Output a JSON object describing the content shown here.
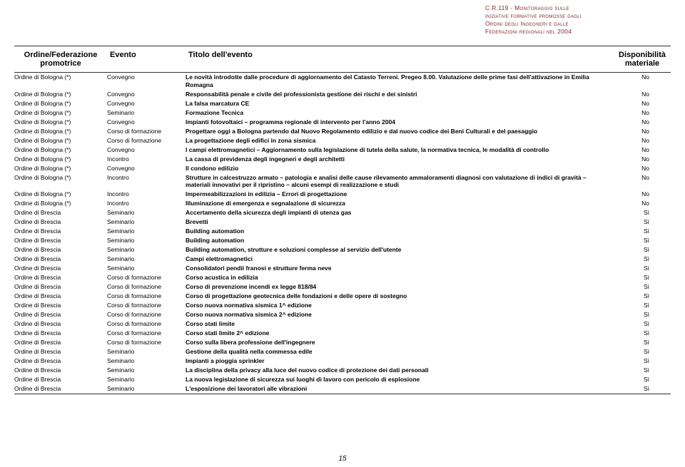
{
  "header": {
    "line1": "C.R.119 - Monitoraggio sulle",
    "line2": "iniziative formative promosse dagli",
    "line3": "Ordini degli Ingegneri e dalle",
    "line4": "Federazioni regionali nel 2004"
  },
  "columns": {
    "promoter": "Ordine/Federazione promotrice",
    "event": "Evento",
    "title": "Titolo dell'evento",
    "avail": "Disponibilità materiale"
  },
  "rows": [
    {
      "a": "Ordine di Bologna (*)",
      "b": "Convegno",
      "c": "Le novità introdotte dalle procedure di aggiornamento del Catasto Terreni. Pregeo 8.00. Valutazione delle prime fasi dell'attivazione in Emilia Romagna",
      "d": "No"
    },
    {
      "a": "Ordine di Bologna (*)",
      "b": "Convegno",
      "c": "Responsabilità penale e civile del professionista gestione dei rischi e dei sinistri",
      "d": "No"
    },
    {
      "a": "Ordine di Bologna (*)",
      "b": "Convegno",
      "c": "La falsa marcatura CE",
      "d": "No"
    },
    {
      "a": "Ordine di Bologna (*)",
      "b": "Seminario",
      "c": "Formazione Tecnica",
      "d": "No"
    },
    {
      "a": "Ordine di Bologna (*)",
      "b": "Convegno",
      "c": "Impianti fotovoltaici – programma regionale di intervento per l'anno 2004",
      "d": "No"
    },
    {
      "a": "Ordine di Bologna (*)",
      "b": "Corso di formazione",
      "c": "Progettare oggi a Bologna partendo dal Nuovo Regolamento edilizio e dal nuovo codice dei Beni Culturali e del paesaggio",
      "d": "No"
    },
    {
      "a": "Ordine di Bologna (*)",
      "b": "Corso di formazione",
      "c": "La progettazione degli edifici in zona sismica",
      "d": "No"
    },
    {
      "a": "Ordine di Bologna (*)",
      "b": "Convegno",
      "c": "I campi elettromagnetici – Aggiornamento sulla legislazione di tutela della salute, la normativa tecnica, le modalità di controllo",
      "d": "No"
    },
    {
      "a": "Ordine di Bologna (*)",
      "b": "Incontro",
      "c": "La cassa di previdenza degli ingegneri e degli architetti",
      "d": "No"
    },
    {
      "a": "Ordine di Bologna (*)",
      "b": "Convegno",
      "c": "Il condono edilizio",
      "d": "No"
    },
    {
      "a": "Ordine di Bologna (*)",
      "b": "Incontro",
      "c": "Strutture in calcestruzzo armato – patologia e analisi delle cause rilevamento ammaloramenti diagnosi con valutazione di indici di gravità – materiali innovativi per il ripristino – alcuni esempi di realizzazione e studi",
      "d": "No"
    },
    {
      "a": "Ordine di Bologna (*)",
      "b": "Incontro",
      "c": "Impermeabilizzazioni in edilizia – Errori di progettazione",
      "d": "No"
    },
    {
      "a": "Ordine di Bologna (*)",
      "b": "Incontro",
      "c": "Illuminazione di emergenza e segnalazione di sicurezza",
      "d": "No"
    },
    {
      "a": "Ordine di Brescia",
      "b": "Seminario",
      "c": "Accertamento della sicurezza degli impianti di utenza gas",
      "d": "Sì"
    },
    {
      "a": "Ordine di Brescia",
      "b": "Seminario",
      "c": "Brevetti",
      "d": "Sì"
    },
    {
      "a": "Ordine di Brescia",
      "b": "Seminario",
      "c": "Building automation",
      "d": "Sì"
    },
    {
      "a": "Ordine di Brescia",
      "b": "Seminario",
      "c": "Building automation",
      "d": "Sì"
    },
    {
      "a": "Ordine di Brescia",
      "b": "Seminario",
      "c": "Building automation, strutture e soluzioni complesse al servizio dell'utente",
      "d": "Sì"
    },
    {
      "a": "Ordine di Brescia",
      "b": "Seminario",
      "c": "Campi elettromagnetici",
      "d": "Sì"
    },
    {
      "a": "Ordine di Brescia",
      "b": "Seminario",
      "c": "Consolidatori pendii franosi e strutture ferma neve",
      "d": "Sì"
    },
    {
      "a": "Ordine di Brescia",
      "b": "Corso di formazione",
      "c": "Corso acustica in edilizia",
      "d": "Sì"
    },
    {
      "a": "Ordine di Brescia",
      "b": "Corso di formazione",
      "c": "Corso di prevenzione incendi ex legge 818/84",
      "d": "Sì"
    },
    {
      "a": "Ordine di Brescia",
      "b": "Corso di formazione",
      "c": "Corso di progettazione geotecnica delle fondazioni e delle opere di sostegno",
      "d": "Sì"
    },
    {
      "a": "Ordine di Brescia",
      "b": "Corso di formazione",
      "c": "Corso nuova normativa sismica 1^ edizione",
      "d": "Sì"
    },
    {
      "a": "Ordine di Brescia",
      "b": "Corso di formazione",
      "c": "Corso nuova normativa sismica 2^ edizione",
      "d": "Sì"
    },
    {
      "a": "Ordine di Brescia",
      "b": "Corso di formazione",
      "c": "Corso stati limite",
      "d": "Sì"
    },
    {
      "a": "Ordine di Brescia",
      "b": "Corso di formazione",
      "c": "Corso stati limite 2^ edizione",
      "d": "Sì"
    },
    {
      "a": "Ordine di Brescia",
      "b": "Corso di formazione",
      "c": "Corso sulla libera professione dell'ingegnere",
      "d": "Sì"
    },
    {
      "a": "Ordine di Brescia",
      "b": "Seminario",
      "c": "Gestione della qualità nella commessa edile",
      "d": "Sì"
    },
    {
      "a": "Ordine di Brescia",
      "b": "Seminario",
      "c": "Impianti a pioggia sprinkler",
      "d": "Sì"
    },
    {
      "a": "Ordine di Brescia",
      "b": "Seminario",
      "c": "La disciplina della privacy alla luce del nuovo codice di protezione dei dati personali",
      "d": "Sì"
    },
    {
      "a": "Ordine di Brescia",
      "b": "Seminario",
      "c": "La nuova legislazione di sicurezza sui luoghi di lavoro con pericolo di esplosione",
      "d": "Sì"
    },
    {
      "a": "Ordine di Brescia",
      "b": "Seminario",
      "c": "L'esposizione dei lavoratori alle vibrazioni",
      "d": "Sì"
    }
  ],
  "page_number": "15"
}
